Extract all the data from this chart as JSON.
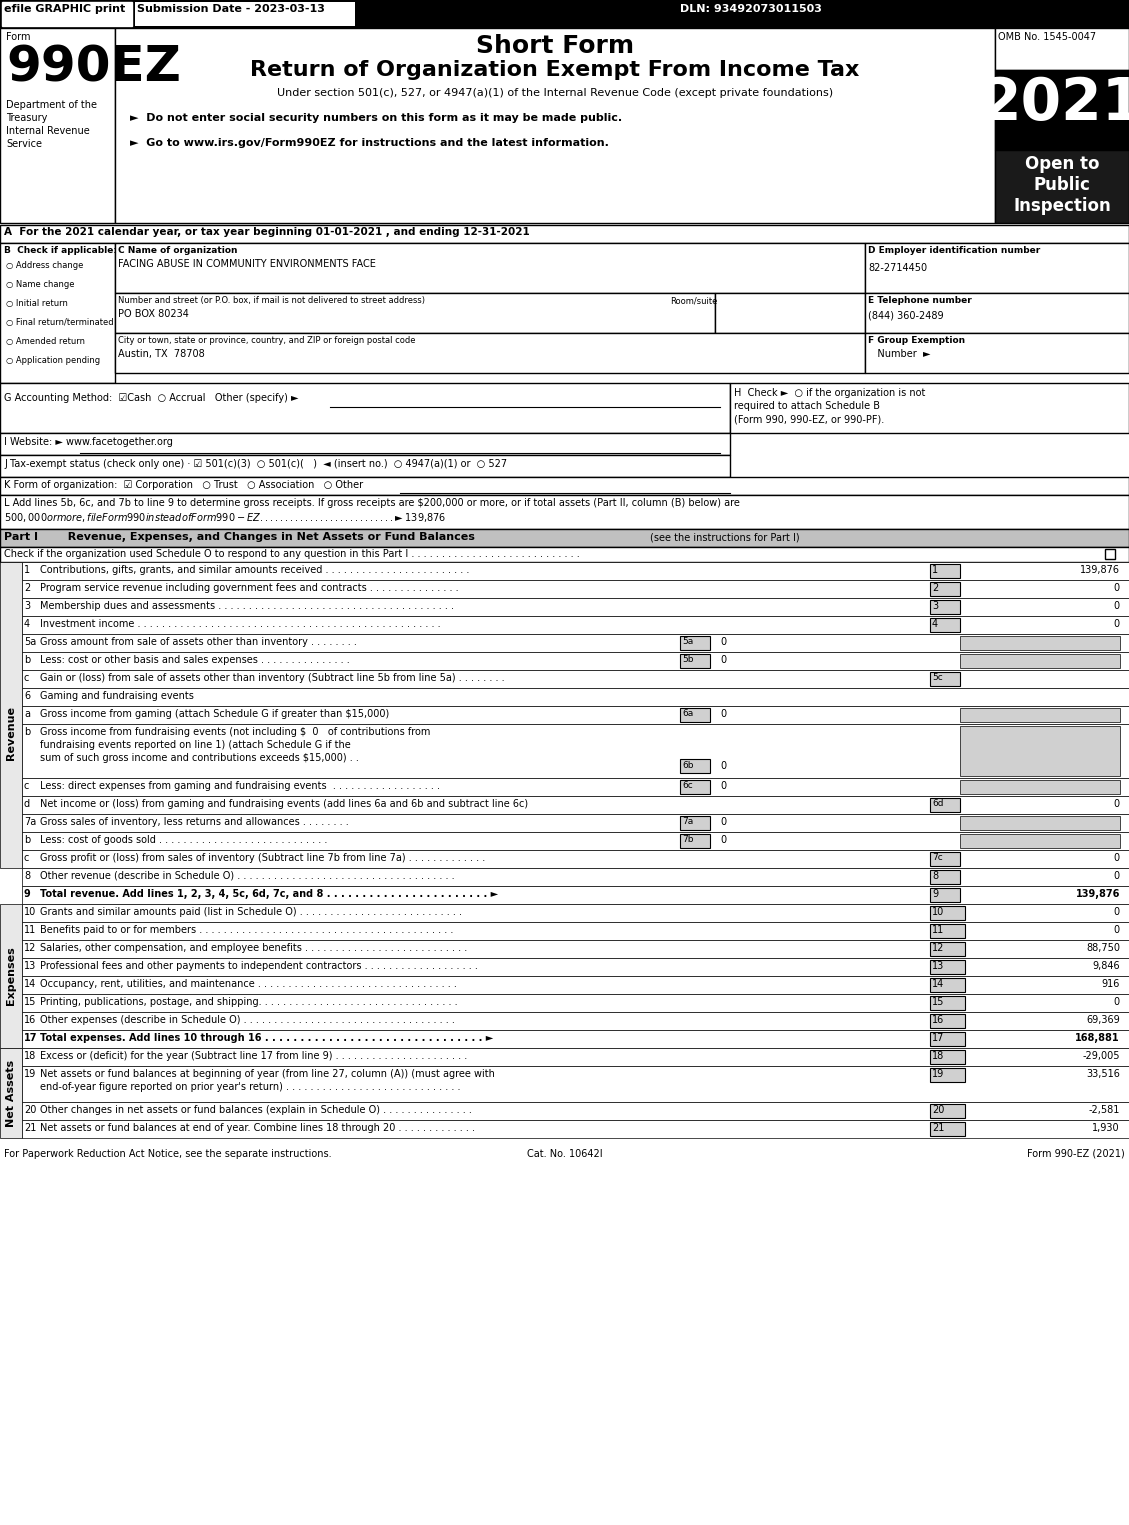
{
  "title_header": "Short Form",
  "title_main": "Return of Organization Exempt From Income Tax",
  "subtitle": "Under section 501(c), 527, or 4947(a)(1) of the Internal Revenue Code (except private foundations)",
  "efile_text": "efile GRAPHIC print",
  "submission_date": "Submission Date - 2023-03-13",
  "dln": "DLN: 93492073011503",
  "omb": "OMB No. 1545-0047",
  "year": "2021",
  "form_number": "990EZ",
  "form_label": "Form",
  "dept1": "Department of the",
  "dept2": "Treasury",
  "dept3": "Internal Revenue",
  "dept4": "Service",
  "open_to": "Open to\nPublic\nInspection",
  "bullet1": "►  Do not enter social security numbers on this form as it may be made public.",
  "bullet2": "►  Go to www.irs.gov/Form990EZ for instructions and the latest information.",
  "section_a": "A  For the 2021 calendar year, or tax year beginning 01-01-2021 , and ending 12-31-2021",
  "section_b": "B  Check if applicable:",
  "check_items": [
    "Address change",
    "Name change",
    "Initial return",
    "Final return/terminated",
    "Amended return",
    "Application pending"
  ],
  "section_c_label": "C Name of organization",
  "org_name": "FACING ABUSE IN COMMUNITY ENVIRONMENTS FACE",
  "address_label": "Number and street (or P.O. box, if mail is not delivered to street address)",
  "room_label": "Room/suite",
  "address_value": "PO BOX 80234",
  "city_label": "City or town, state or province, country, and ZIP or foreign postal code",
  "city_value": "Austin, TX  78708",
  "section_d": "D Employer identification number",
  "ein": "82-2714450",
  "section_e": "E Telephone number",
  "phone": "(844) 360-2489",
  "section_f": "F Group Exemption\n  Number  ►",
  "section_g": "G Accounting Method:  ☑Cash  ○ Accrual   Other (specify) ►",
  "section_h": "H  Check ►  ○ if the organization is not\n  required to attach Schedule B\n  (Form 990, 990-EZ, or 990-PF).",
  "section_i": "I Website: ► www.facetogether.org",
  "section_j": "J Tax-exempt status (check only one) · ☑ 501(c)(3)  ○ 501(c)(   )  ◄ (insert no.)  ○ 4947(a)(1) or  ○ 527",
  "section_k": "K Form of organization:  ☑ Corporation   ○ Trust   ○ Association   ○ Other",
  "section_l": "L Add lines 5b, 6c, and 7b to line 9 to determine gross receipts. If gross receipts are $200,000 or more, or if total assets (Part II, column (B) below) are\n$500,000 or more, file Form 990 instead of Form 990-EZ . . . . . . . . . . . . . . . . . . . . . . . . . . . ► $ 139,876",
  "part1_title": "Part I   Revenue, Expenses, and Changes in Net Assets or Fund Balances",
  "part1_note": "(see the instructions for Part I)",
  "part1_check": "Check if the organization used Schedule O to respond to any question in this Part I . . . . . . . . . . . . . . . . . . . . . . . . . . . .",
  "revenue_label": "Revenue",
  "expenses_label": "Expenses",
  "net_assets_label": "Net Assets",
  "lines": [
    {
      "num": "1",
      "desc": "Contributions, gifts, grants, and similar amounts received . . . . . . . . . . . . . . . . . . . . . . . .",
      "box": "1",
      "value": "139,876"
    },
    {
      "num": "2",
      "desc": "Program service revenue including government fees and contracts . . . . . . . . . . . . . . .",
      "box": "2",
      "value": "0"
    },
    {
      "num": "3",
      "desc": "Membership dues and assessments . . . . . . . . . . . . . . . . . . . . . . . . . . . . . . . . . . . . . . .",
      "box": "3",
      "value": "0"
    },
    {
      "num": "4",
      "desc": "Investment income . . . . . . . . . . . . . . . . . . . . . . . . . . . . . . . . . . . . . . . . . . . . . . . . . .",
      "box": "4",
      "value": "0"
    },
    {
      "num": "5a",
      "desc": "Gross amount from sale of assets other than inventory . . . . . . . .",
      "box": "5a",
      "value": "0",
      "inline": true
    },
    {
      "num": "5b",
      "desc": "Less: cost or other basis and sales expenses . . . . . . . . . . . . . . .",
      "box": "5b",
      "value": "0",
      "inline": true
    },
    {
      "num": "5c",
      "desc": "Gain or (loss) from sale of assets other than inventory (Subtract line 5b from line 5a) . . . . . . . .",
      "box": "5c",
      "value": ""
    },
    {
      "num": "6",
      "desc": "Gaming and fundraising events",
      "header": true
    },
    {
      "num": "6a",
      "desc": "Gross income from gaming (attach Schedule G if greater than $15,000)",
      "box": "6a",
      "value": "0",
      "inline": true
    },
    {
      "num": "6b",
      "desc": "Gross income from fundraising events (not including $ 0  of contributions from\nfundraising events reported on line 1) (attach Schedule G if the\nsum of such gross income and contributions exceeds $15,000) . .",
      "box": "6b",
      "value": "0",
      "inline": true
    },
    {
      "num": "6c",
      "desc": "Less: direct expenses from gaming and fundraising events . . . . . . . . . . . . . . . . . .",
      "box": "6c",
      "value": "0",
      "inline": true
    },
    {
      "num": "6d",
      "desc": "Net income or (loss) from gaming and fundraising events (add lines 6a and 6b and subtract line 6c)",
      "box": "6d",
      "value": "0"
    },
    {
      "num": "7a",
      "desc": "Gross sales of inventory, less returns and allowances . . . . . . . .",
      "box": "7a",
      "value": "0",
      "inline": true
    },
    {
      "num": "7b",
      "desc": "Less: cost of goods sold . . . . . . . . . . . . . . . . . . . . . . . . . . . .",
      "box": "7b",
      "value": "0",
      "inline": true
    },
    {
      "num": "7c",
      "desc": "Gross profit or (loss) from sales of inventory (Subtract line 7b from line 7a) . . . . . . . . . . . . .",
      "box": "7c",
      "value": "0"
    },
    {
      "num": "8",
      "desc": "Other revenue (describe in Schedule O) . . . . . . . . . . . . . . . . . . . . . . . . . . . . . . . . . . . .",
      "box": "8",
      "value": "0"
    },
    {
      "num": "9",
      "desc": "Total revenue. Add lines 1, 2, 3, 4, 5c, 6d, 7c, and 8 . . . . . . . . . . . . . . . . . . . . . . . ►",
      "box": "9",
      "value": "139,876",
      "bold": true
    }
  ],
  "expense_lines": [
    {
      "num": "10",
      "desc": "Grants and similar amounts paid (list in Schedule O) . . . . . . . . . . . . . . . . . . . . . . . . . . .",
      "box": "10",
      "value": "0"
    },
    {
      "num": "11",
      "desc": "Benefits paid to or for members . . . . . . . . . . . . . . . . . . . . . . . . . . . . . . . . . . . . . . . . . .",
      "box": "11",
      "value": "0"
    },
    {
      "num": "12",
      "desc": "Salaries, other compensation, and employee benefits . . . . . . . . . . . . . . . . . . . . . . . . . . .",
      "box": "12",
      "value": "88,750"
    },
    {
      "num": "13",
      "desc": "Professional fees and other payments to independent contractors . . . . . . . . . . . . . . . . . . .",
      "box": "13",
      "value": "9,846"
    },
    {
      "num": "14",
      "desc": "Occupancy, rent, utilities, and maintenance . . . . . . . . . . . . . . . . . . . . . . . . . . . . . . . . .",
      "box": "14",
      "value": "916"
    },
    {
      "num": "15",
      "desc": "Printing, publications, postage, and shipping. . . . . . . . . . . . . . . . . . . . . . . . . . . . . . . . .",
      "box": "15",
      "value": "0"
    },
    {
      "num": "16",
      "desc": "Other expenses (describe in Schedule O) . . . . . . . . . . . . . . . . . . . . . . . . . . . . . . . . . . .",
      "box": "16",
      "value": "69,369"
    },
    {
      "num": "17",
      "desc": "Total expenses. Add lines 10 through 16 . . . . . . . . . . . . . . . . . . . . . . . . . . . . . . . ►",
      "box": "17",
      "value": "168,881",
      "bold": true
    }
  ],
  "net_asset_lines": [
    {
      "num": "18",
      "desc": "Excess or (deficit) for the year (Subtract line 17 from line 9) . . . . . . . . . . . . . . . . . . . . . .",
      "box": "18",
      "value": "-29,005"
    },
    {
      "num": "19",
      "desc": "Net assets or fund balances at beginning of year (from line 27, column (A)) (must agree with\nend-of-year figure reported on prior year's return) . . . . . . . . . . . . . . . . . . . . . . . . . . . . .",
      "box": "19",
      "value": "33,516"
    },
    {
      "num": "20",
      "desc": "Other changes in net assets or fund balances (explain in Schedule O) . . . . . . . . . . . . . . .",
      "box": "20",
      "value": "-2,581"
    },
    {
      "num": "21",
      "desc": "Net assets or fund balances at end of year. Combine lines 18 through 20 . . . . . . . . . . . . .",
      "box": "21",
      "value": "1,930"
    }
  ],
  "footer_left": "For Paperwork Reduction Act Notice, see the separate instructions.",
  "footer_cat": "Cat. No. 10642I",
  "footer_right": "Form 990-EZ (2021)",
  "bg_color": "#ffffff",
  "header_bg": "#000000",
  "header_text": "#ffffff",
  "part_header_bg": "#c0c0c0",
  "border_color": "#000000",
  "year_bg": "#000000",
  "open_bg": "#1a1a1a"
}
